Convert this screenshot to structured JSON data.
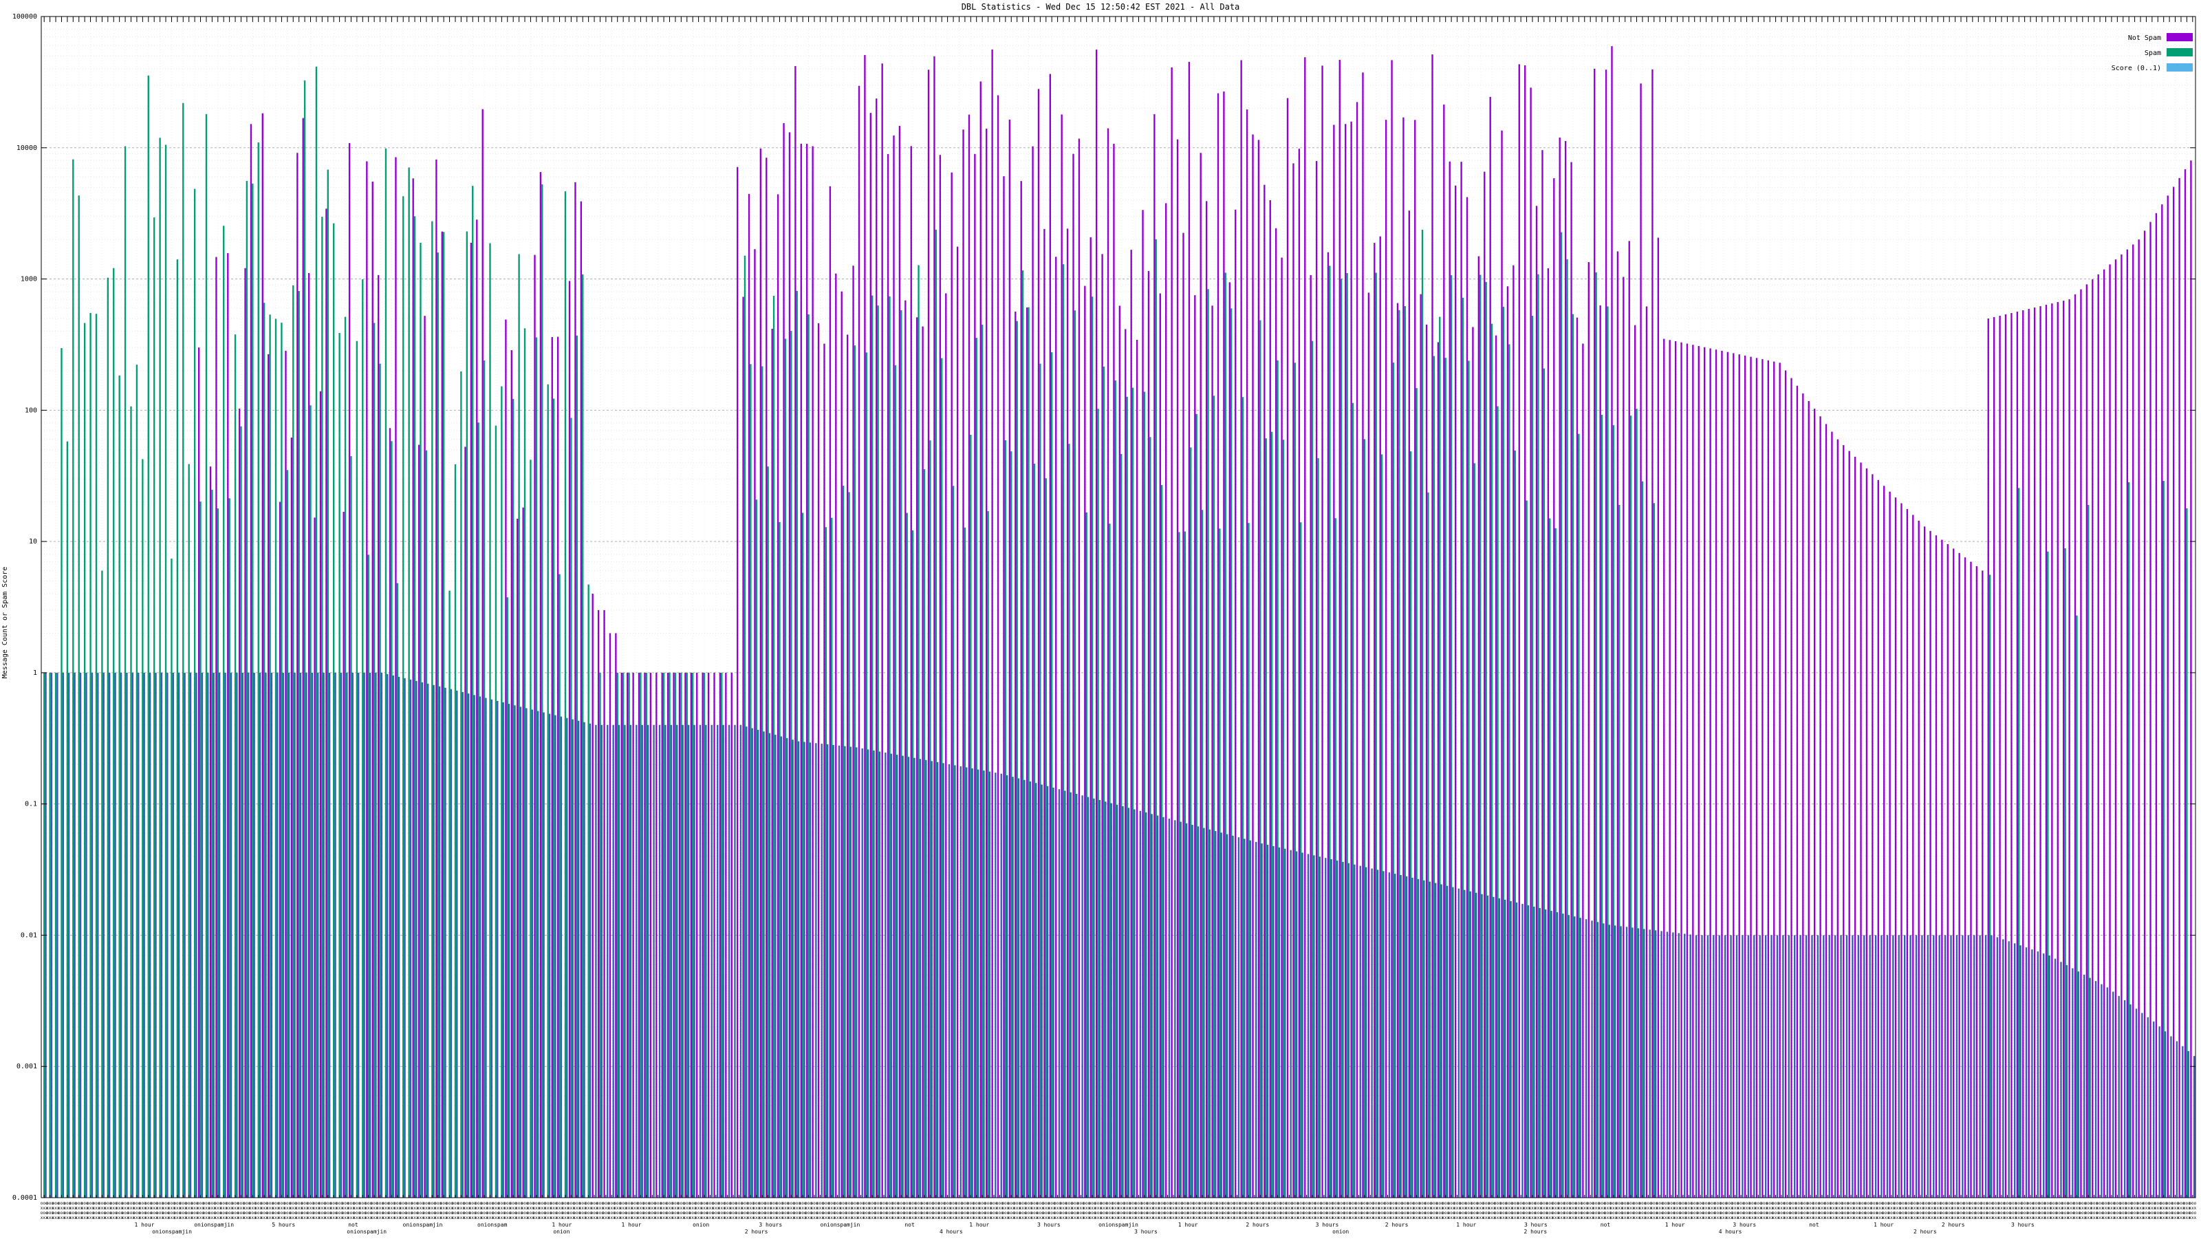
{
  "chart_data": {
    "type": "bar",
    "title": "DBL Statistics - Wed Dec 15 12:50:42 EST 2021 - All Data",
    "ylabel": "Message Count or Spam Score",
    "yscale": "log",
    "ylim": [
      0.0001,
      100000
    ],
    "yticks": [
      "100000",
      "10000",
      "1000",
      "100",
      "10",
      "1",
      "0.1",
      "0.01",
      "0.001",
      "0.0001"
    ],
    "grid": true,
    "legend_position": "top-right",
    "colors": {
      "not_spam": "#9400D3",
      "spam": "#009E73",
      "score": "#56B4E9",
      "overlap": "#3a5ab8"
    },
    "series": [
      {
        "name": "Not Spam",
        "key": "not_spam"
      },
      {
        "name": "Spam",
        "key": "spam"
      },
      {
        "name": "Score (0..1)",
        "key": "score"
      }
    ],
    "x_label_rows": [
      [
        "1 hour",
        "onionspamjin",
        "5 hours",
        "not",
        "onionspamjin",
        "onionspam",
        "1 hour",
        "1 hour",
        "onion",
        "3 hours",
        "onionspamjin",
        "not",
        "1 hour",
        "3 hours",
        "onionspamjin",
        "1 hour",
        "2 hours",
        "3 hours",
        "2 hours",
        "1 hour",
        "3 hours",
        "not",
        "1 hour",
        "3 hours",
        "not",
        "1 hour",
        "2 hours",
        "3 hours"
      ],
      [
        "onionspamjin",
        "onionspamjin",
        "onion",
        "2 hours",
        "4 hours",
        "3 hours",
        "onion",
        "2 hours",
        "4 hours",
        "2 hours"
      ]
    ]
  }
}
